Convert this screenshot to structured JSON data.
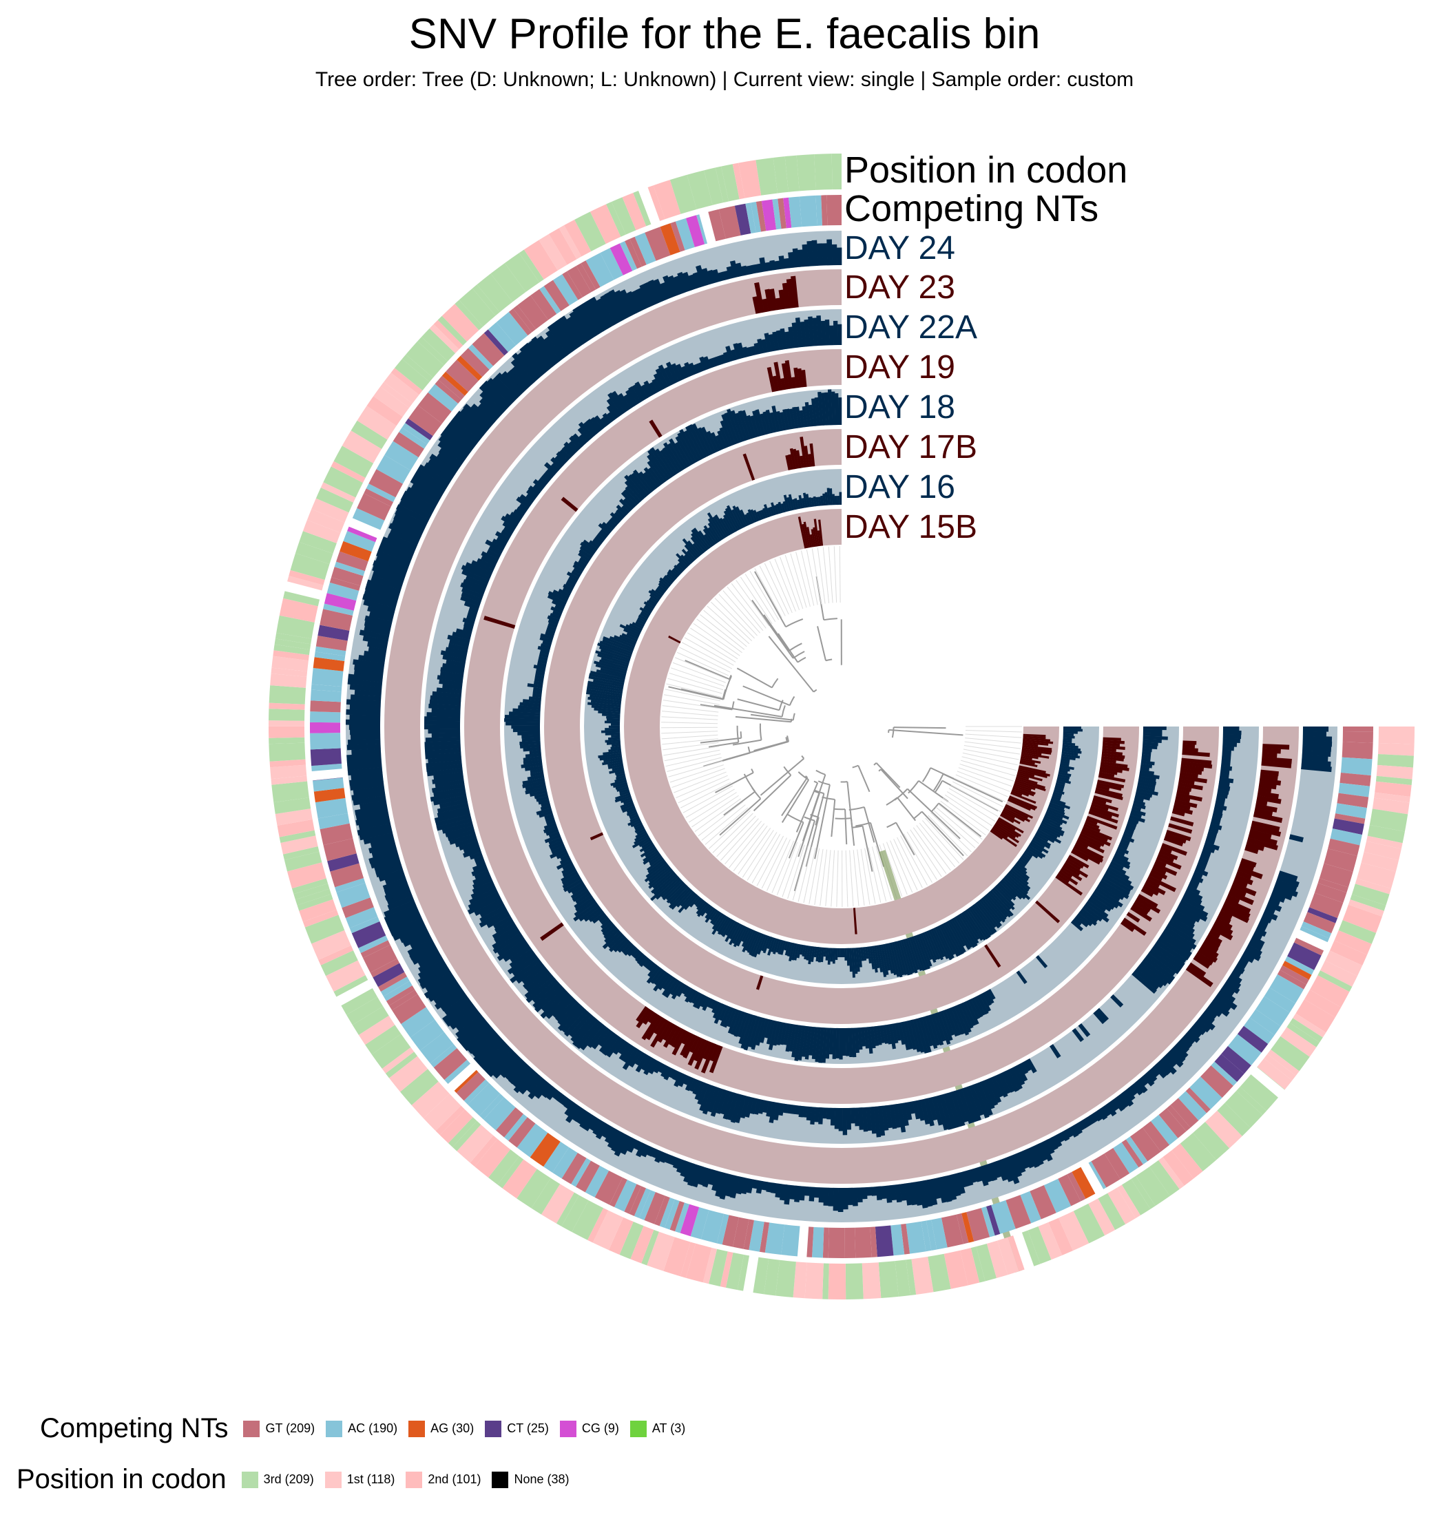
{
  "header": {
    "title": "SNV Profile for the E. faecalis bin",
    "subtitle": "Tree order: Tree (D: Unknown; L: Unknown) | Current view: single | Sample order: custom"
  },
  "layers": [
    {
      "label": "Position in codon",
      "type": "codon",
      "label_color": "#000000"
    },
    {
      "label": "Competing NTs",
      "type": "nts",
      "label_color": "#000000"
    },
    {
      "label": "DAY 24",
      "type": "bar",
      "bg": "#b0c1cc",
      "bar": "#002a4e",
      "label_color": "#002a4e"
    },
    {
      "label": "DAY 23",
      "type": "bar",
      "bg": "#cbb0b2",
      "bar": "#4e0000",
      "label_color": "#4e0000"
    },
    {
      "label": "DAY 22A",
      "type": "bar",
      "bg": "#b0c1cc",
      "bar": "#002a4e",
      "label_color": "#002a4e"
    },
    {
      "label": "DAY 19",
      "type": "bar",
      "bg": "#cbb0b2",
      "bar": "#4e0000",
      "label_color": "#4e0000"
    },
    {
      "label": "DAY 18",
      "type": "bar",
      "bg": "#b0c1cc",
      "bar": "#002a4e",
      "label_color": "#002a4e"
    },
    {
      "label": "DAY 17B",
      "type": "bar",
      "bg": "#cbb0b2",
      "bar": "#4e0000",
      "label_color": "#4e0000"
    },
    {
      "label": "DAY 16",
      "type": "bar",
      "bg": "#b0c1cc",
      "bar": "#002a4e",
      "label_color": "#002a4e"
    },
    {
      "label": "DAY 15B",
      "type": "bar",
      "bg": "#cbb0b2",
      "bar": "#4e0000",
      "label_color": "#4e0000"
    }
  ],
  "legends": {
    "competing_nts": {
      "title": "Competing NTs",
      "items": [
        {
          "label": "GT (209)",
          "color": "#c46f7a"
        },
        {
          "label": "AC (190)",
          "color": "#86c4d9"
        },
        {
          "label": "AG (30)",
          "color": "#e05a1e"
        },
        {
          "label": "CT (25)",
          "color": "#5a3e8a"
        },
        {
          "label": "CG (9)",
          "color": "#d44fd4"
        },
        {
          "label": "AT (3)",
          "color": "#6fd23e"
        }
      ]
    },
    "position_in_codon": {
      "title": "Position in codon",
      "items": [
        {
          "label": "3rd (209)",
          "color": "#b4ddaa"
        },
        {
          "label": "1st (118)",
          "color": "#ffc7c7"
        },
        {
          "label": "2nd (101)",
          "color": "#ffbcbc"
        },
        {
          "label": "None (38)",
          "color": "#000000"
        }
      ]
    }
  },
  "tree": {
    "branch_color": "#999999",
    "highlight_color": "#8aa36a"
  }
}
